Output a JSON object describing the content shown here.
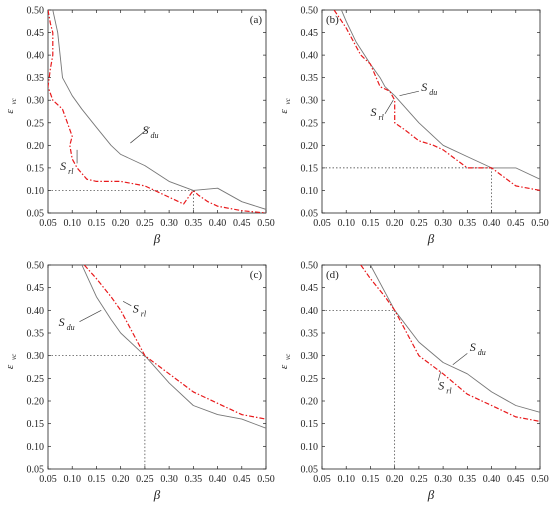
{
  "chart_data": [
    {
      "type": "line",
      "panel_label": "(a)",
      "xlabel": "β",
      "ylabel": {
        "main": "ε",
        "sub": "vc"
      },
      "xlim": [
        0.05,
        0.5
      ],
      "ylim": [
        0.05,
        0.5
      ],
      "xticks": [
        "0.05",
        "0.10",
        "0.15",
        "0.20",
        "0.25",
        "0.30",
        "0.35",
        "0.40",
        "0.45",
        "0.50"
      ],
      "yticks": [
        "0.05",
        "0.10",
        "0.15",
        "0.20",
        "0.25",
        "0.30",
        "0.35",
        "0.40",
        "0.45",
        "0.50"
      ],
      "grid": false,
      "series": [
        {
          "name": "S_du",
          "main": "S",
          "sub": "du",
          "color": "#777777",
          "dash": "solid",
          "x": [
            0.06,
            0.07,
            0.075,
            0.08,
            0.09,
            0.1,
            0.12,
            0.15,
            0.18,
            0.2,
            0.25,
            0.3,
            0.35,
            0.4,
            0.45,
            0.5
          ],
          "y": [
            0.5,
            0.45,
            0.4,
            0.35,
            0.33,
            0.31,
            0.28,
            0.24,
            0.2,
            0.18,
            0.155,
            0.12,
            0.1,
            0.105,
            0.075,
            0.058
          ]
        },
        {
          "name": "S_rl",
          "main": "S",
          "sub": "rl",
          "color": "#e8191b",
          "dash": "dashdot",
          "x": [
            0.05,
            0.055,
            0.06,
            0.06,
            0.055,
            0.05,
            0.06,
            0.08,
            0.09,
            0.1,
            0.095,
            0.1,
            0.11,
            0.13,
            0.15,
            0.2,
            0.25,
            0.3,
            0.33,
            0.35,
            0.36,
            0.38,
            0.4,
            0.45,
            0.5
          ],
          "y": [
            0.5,
            0.47,
            0.45,
            0.4,
            0.37,
            0.33,
            0.3,
            0.28,
            0.25,
            0.22,
            0.2,
            0.17,
            0.15,
            0.125,
            0.12,
            0.12,
            0.11,
            0.085,
            0.07,
            0.1,
            0.09,
            0.075,
            0.065,
            0.055,
            0.05
          ]
        }
      ],
      "annotation_point": {
        "x": 0.35,
        "y": 0.1
      },
      "labels": [
        {
          "series": "S_du",
          "text": "S",
          "sub": "du",
          "x": 0.245,
          "y": 0.225,
          "lx": 0.26,
          "ly": 0.24,
          "ax": 0.22,
          "ay": 0.205
        },
        {
          "series": "S_rl",
          "text": "S",
          "sub": "rl",
          "x": 0.075,
          "y": 0.145,
          "lx": 0.11,
          "ly": 0.16,
          "ax": 0.11,
          "ay": 0.19
        }
      ]
    },
    {
      "type": "line",
      "panel_label": "(b)",
      "xlabel": "β",
      "ylabel": {
        "main": "ε",
        "sub": "vc"
      },
      "xlim": [
        0.05,
        0.5
      ],
      "ylim": [
        0.05,
        0.5
      ],
      "xticks": [
        "0.05",
        "0.10",
        "0.15",
        "0.20",
        "0.25",
        "0.30",
        "0.35",
        "0.40",
        "0.45",
        "0.50"
      ],
      "yticks": [
        "0.05",
        "0.10",
        "0.15",
        "0.20",
        "0.25",
        "0.30",
        "0.35",
        "0.40",
        "0.45",
        "0.50"
      ],
      "grid": false,
      "series": [
        {
          "name": "S_du",
          "main": "S",
          "sub": "du",
          "color": "#777777",
          "dash": "solid",
          "x": [
            0.09,
            0.1,
            0.12,
            0.15,
            0.17,
            0.18,
            0.2,
            0.25,
            0.3,
            0.35,
            0.4,
            0.45,
            0.5
          ],
          "y": [
            0.5,
            0.475,
            0.43,
            0.38,
            0.35,
            0.33,
            0.31,
            0.25,
            0.2,
            0.175,
            0.15,
            0.15,
            0.125
          ]
        },
        {
          "name": "S_rl",
          "main": "S",
          "sub": "rl",
          "color": "#e8191b",
          "dash": "dashdot",
          "x": [
            0.075,
            0.1,
            0.12,
            0.13,
            0.15,
            0.17,
            0.19,
            0.2,
            0.2,
            0.22,
            0.25,
            0.28,
            0.3,
            0.35,
            0.4,
            0.45,
            0.5
          ],
          "y": [
            0.5,
            0.46,
            0.42,
            0.4,
            0.38,
            0.33,
            0.32,
            0.3,
            0.25,
            0.235,
            0.21,
            0.2,
            0.19,
            0.15,
            0.15,
            0.11,
            0.1
          ]
        }
      ],
      "annotation_point": {
        "x": 0.4,
        "y": 0.15
      },
      "labels": [
        {
          "series": "S_du",
          "text": "S",
          "sub": "du",
          "x": 0.255,
          "y": 0.32,
          "lx": 0.25,
          "ly": 0.32,
          "ax": 0.21,
          "ay": 0.31
        },
        {
          "series": "S_rl",
          "text": "S",
          "sub": "rl",
          "x": 0.15,
          "y": 0.265,
          "lx": 0.18,
          "ly": 0.27,
          "ax": 0.197,
          "ay": 0.3
        }
      ]
    },
    {
      "type": "line",
      "panel_label": "(c)",
      "xlabel": "β",
      "ylabel": {
        "main": "ε",
        "sub": "vc"
      },
      "xlim": [
        0.05,
        0.5
      ],
      "ylim": [
        0.05,
        0.5
      ],
      "xticks": [
        "0.05",
        "0.10",
        "0.15",
        "0.20",
        "0.25",
        "0.30",
        "0.35",
        "0.40",
        "0.45",
        "0.50"
      ],
      "yticks": [
        "0.05",
        "0.10",
        "0.15",
        "0.20",
        "0.25",
        "0.30",
        "0.35",
        "0.40",
        "0.45",
        "0.50"
      ],
      "grid": false,
      "series": [
        {
          "name": "S_du",
          "main": "S",
          "sub": "du",
          "color": "#777777",
          "dash": "solid",
          "x": [
            0.12,
            0.15,
            0.18,
            0.2,
            0.25,
            0.3,
            0.35,
            0.4,
            0.45,
            0.5
          ],
          "y": [
            0.5,
            0.43,
            0.38,
            0.35,
            0.3,
            0.24,
            0.19,
            0.17,
            0.16,
            0.14
          ]
        },
        {
          "name": "S_rl",
          "main": "S",
          "sub": "rl",
          "color": "#e8191b",
          "dash": "dashdot",
          "x": [
            0.125,
            0.15,
            0.18,
            0.2,
            0.22,
            0.25,
            0.3,
            0.35,
            0.4,
            0.45,
            0.5
          ],
          "y": [
            0.5,
            0.47,
            0.43,
            0.4,
            0.36,
            0.3,
            0.26,
            0.22,
            0.195,
            0.17,
            0.16
          ]
        }
      ],
      "annotation_point": {
        "x": 0.25,
        "y": 0.3
      },
      "labels": [
        {
          "series": "S_du",
          "text": "S",
          "sub": "du",
          "x": 0.072,
          "y": 0.365,
          "lx": 0.115,
          "ly": 0.375,
          "ax": 0.16,
          "ay": 0.4
        },
        {
          "series": "S_rl",
          "text": "S",
          "sub": "rl",
          "x": 0.225,
          "y": 0.395,
          "lx": 0.222,
          "ly": 0.41,
          "ax": 0.205,
          "ay": 0.42
        }
      ]
    },
    {
      "type": "line",
      "panel_label": "(d)",
      "xlabel": "β",
      "ylabel": {
        "main": "ε",
        "sub": "vc"
      },
      "xlim": [
        0.05,
        0.5
      ],
      "ylim": [
        0.05,
        0.5
      ],
      "xticks": [
        "0.05",
        "0.10",
        "0.15",
        "0.20",
        "0.25",
        "0.30",
        "0.35",
        "0.40",
        "0.45",
        "0.50"
      ],
      "yticks": [
        "0.05",
        "0.10",
        "0.15",
        "0.20",
        "0.25",
        "0.30",
        "0.35",
        "0.40",
        "0.45",
        "0.50"
      ],
      "grid": false,
      "series": [
        {
          "name": "S_du",
          "main": "S",
          "sub": "du",
          "color": "#777777",
          "dash": "solid",
          "x": [
            0.15,
            0.18,
            0.2,
            0.25,
            0.3,
            0.35,
            0.4,
            0.45,
            0.5
          ],
          "y": [
            0.5,
            0.44,
            0.4,
            0.33,
            0.285,
            0.26,
            0.22,
            0.19,
            0.175
          ]
        },
        {
          "name": "S_rl",
          "main": "S",
          "sub": "rl",
          "color": "#e8191b",
          "dash": "dashdot",
          "x": [
            0.13,
            0.15,
            0.18,
            0.2,
            0.25,
            0.3,
            0.35,
            0.4,
            0.45,
            0.5
          ],
          "y": [
            0.5,
            0.47,
            0.43,
            0.4,
            0.3,
            0.26,
            0.215,
            0.19,
            0.165,
            0.155
          ]
        }
      ],
      "annotation_point": {
        "x": 0.2,
        "y": 0.4
      },
      "labels": [
        {
          "series": "S_du",
          "text": "S",
          "sub": "du",
          "x": 0.355,
          "y": 0.31,
          "lx": 0.35,
          "ly": 0.305,
          "ax": 0.32,
          "ay": 0.28
        },
        {
          "series": "S_rl",
          "text": "S",
          "sub": "rl",
          "x": 0.29,
          "y": 0.225,
          "lx": 0.29,
          "ly": 0.245,
          "ax": 0.295,
          "ay": 0.265
        }
      ]
    }
  ]
}
